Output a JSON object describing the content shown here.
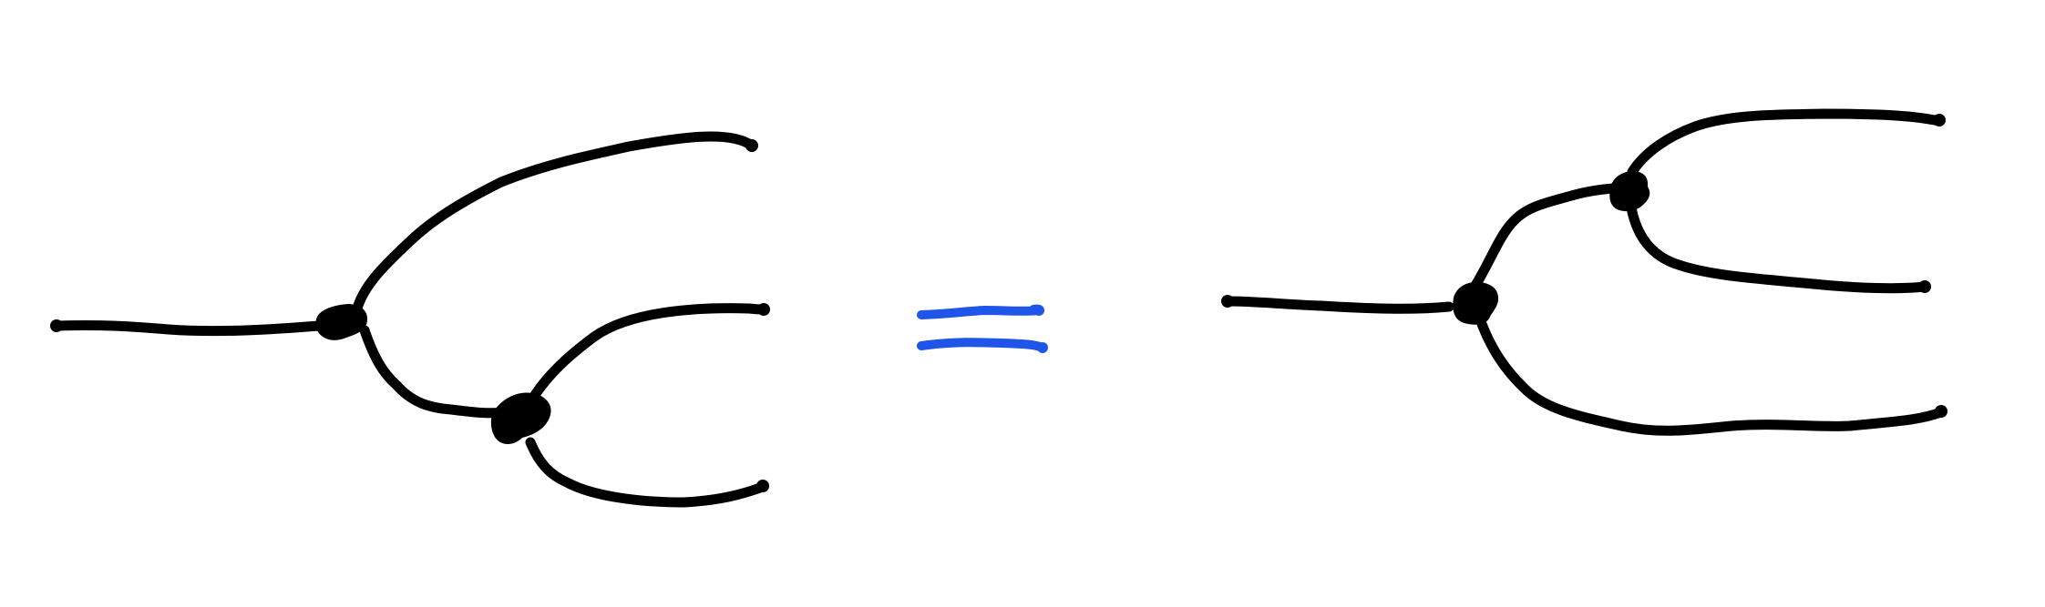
{
  "diagram": {
    "description_visible_text": [],
    "colors": {
      "ink": "#000000",
      "equals_sign": "#1f55e8",
      "background": "#ffffff"
    },
    "left_tree": {
      "nodes": 2,
      "leaves": 3,
      "root_edge_count": 1
    },
    "equals_symbol": "=",
    "right_tree": {
      "nodes": 2,
      "leaves": 3,
      "root_edge_count": 1
    }
  }
}
